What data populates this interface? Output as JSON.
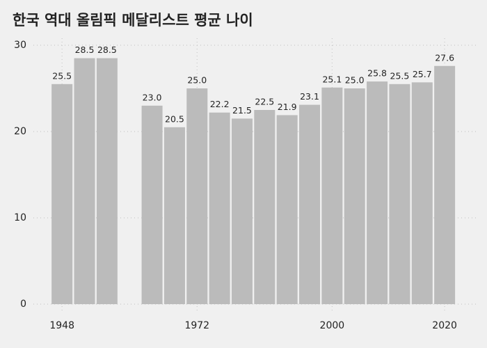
{
  "chart_data": {
    "type": "bar",
    "title": "한국 역대 올림픽 메달리스트 평균 나이",
    "categories": [
      "1948",
      null,
      null,
      null,
      null,
      null,
      "1972",
      null,
      null,
      null,
      null,
      null,
      "2000",
      null,
      null,
      null,
      null,
      "2020"
    ],
    "values": [
      25.5,
      28.5,
      28.5,
      null,
      23.0,
      20.5,
      25.0,
      22.2,
      21.5,
      22.5,
      21.9,
      23.1,
      25.1,
      25.0,
      25.8,
      25.5,
      25.7,
      27.6
    ],
    "value_labels": [
      "25.5",
      "28.5",
      "28.5",
      null,
      "23.0",
      "20.5",
      "25.0",
      "22.2",
      "21.5",
      "22.5",
      "21.9",
      "23.1",
      "25.1",
      "25.0",
      "25.8",
      "25.5",
      "25.7",
      "27.6"
    ],
    "color": "#bbbbbb",
    "ylim": [
      0,
      30
    ],
    "yticks": [
      0,
      10,
      20,
      30
    ],
    "grid": true
  }
}
